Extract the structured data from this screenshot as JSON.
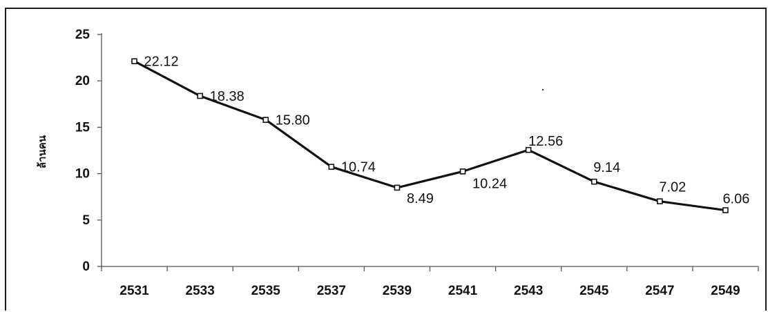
{
  "chart_data": {
    "type": "line",
    "title": "",
    "xlabel": "",
    "ylabel": "ล้านคน",
    "categories": [
      "2531",
      "2533",
      "2535",
      "2537",
      "2539",
      "2541",
      "2543",
      "2545",
      "2547",
      "2549"
    ],
    "series": [
      {
        "values": [
          22.12,
          18.38,
          15.8,
          10.74,
          8.49,
          10.24,
          12.56,
          9.14,
          7.02,
          6.06
        ],
        "value_labels": [
          "22.12",
          "18.38",
          "15.80",
          "10.74",
          "8.49",
          "10.24",
          "12.56",
          "9.14",
          "7.02",
          "6.06"
        ],
        "color": "#111111",
        "marker": "open-square"
      }
    ],
    "ylim": [
      0,
      25
    ],
    "yticks": [
      "0",
      "5",
      "10",
      "15",
      "20",
      "25"
    ],
    "grid": false,
    "legend": "none"
  }
}
